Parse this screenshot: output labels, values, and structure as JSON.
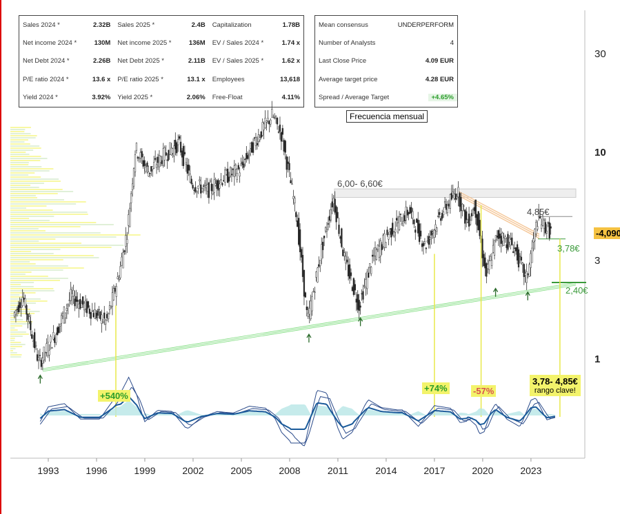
{
  "fundamentals": [
    [
      [
        "Sales 2024 *",
        "2.32B"
      ],
      [
        "Sales 2025 *",
        "2.4B"
      ],
      [
        "Capitalization",
        "1.78B"
      ]
    ],
    [
      [
        "Net income 2024 *",
        "130M"
      ],
      [
        "Net income 2025 *",
        "136M"
      ],
      [
        "EV / Sales 2024 *",
        "1.74 x"
      ]
    ],
    [
      [
        "Net Debt 2024 *",
        "2.26B"
      ],
      [
        "Net Debt 2025 *",
        "2.11B"
      ],
      [
        "EV / Sales 2025 *",
        "1.62 x"
      ]
    ],
    [
      [
        "P/E ratio 2024 *",
        "13.6 x"
      ],
      [
        "P/E ratio 2025 *",
        "13.1 x"
      ],
      [
        "Employees",
        "13,618"
      ]
    ],
    [
      [
        "Yield 2024 *",
        "3.92%"
      ],
      [
        "Yield 2025 *",
        "2.06%"
      ],
      [
        "Free-Float",
        "4.11%"
      ]
    ]
  ],
  "consensus": [
    [
      "Mean consensus",
      "UNDERPERFORM"
    ],
    [
      "Number of Analysts",
      "4"
    ],
    [
      "Last Close Price",
      "4.09 EUR"
    ],
    [
      "Average target price",
      "4.28 EUR"
    ],
    [
      "Spread / Average Target",
      "+4.65%"
    ]
  ],
  "colors": {
    "positive": "#2a9d2a",
    "negative": "#d9534f",
    "annot_yellow": "#f3f36b",
    "support": "#7ddc7d",
    "price_tag": "#f5c242"
  },
  "chart_data": {
    "type": "candlestick",
    "title": "Frecuencia mensual",
    "yscale": "log",
    "ylim": [
      0.8,
      40
    ],
    "yticks": [
      "1",
      "3",
      "10",
      "30"
    ],
    "xticks": [
      "1993",
      "1996",
      "1999",
      "2002",
      "2005",
      "2008",
      "2011",
      "2014",
      "2017",
      "2020",
      "2023"
    ],
    "xlim": [
      1990.8,
      2026.3
    ],
    "last_price_label": "-4,090",
    "price_path": [
      [
        1990.9,
        1.6
      ],
      [
        1991.5,
        2.0
      ],
      [
        1992.5,
        0.95
      ],
      [
        1993.5,
        1.3
      ],
      [
        1994.5,
        2.0
      ],
      [
        1995.3,
        1.8
      ],
      [
        1996.7,
        1.5
      ],
      [
        1997.5,
        2.6
      ],
      [
        1998.0,
        4.2
      ],
      [
        1998.5,
        10.4
      ],
      [
        1999.3,
        8
      ],
      [
        2000.2,
        9.5
      ],
      [
        2001.2,
        11
      ],
      [
        2002.0,
        7
      ],
      [
        2003.0,
        6.5
      ],
      [
        2004.0,
        7.5
      ],
      [
        2005.0,
        8.2
      ],
      [
        2006.0,
        11.5
      ],
      [
        2007.0,
        15
      ],
      [
        2007.6,
        12
      ],
      [
        2008.5,
        5
      ],
      [
        2009.2,
        1.5
      ],
      [
        2010.0,
        3.2
      ],
      [
        2010.8,
        6
      ],
      [
        2011.5,
        3
      ],
      [
        2012.4,
        1.8
      ],
      [
        2013.2,
        3
      ],
      [
        2014.2,
        4
      ],
      [
        2015.5,
        5.2
      ],
      [
        2016.5,
        3.5
      ],
      [
        2017.5,
        5
      ],
      [
        2018.5,
        6.5
      ],
      [
        2019.1,
        4.5
      ],
      [
        2019.6,
        5.5
      ],
      [
        2020.3,
        2.5
      ],
      [
        2021.0,
        4
      ],
      [
        2022.0,
        3.5
      ],
      [
        2022.8,
        2.4
      ],
      [
        2023.5,
        4.8
      ],
      [
        2024.3,
        4.09
      ]
    ],
    "annotations": {
      "resistance": "6,00- 6,60€",
      "high": "4,85€",
      "mid_support": "3,78€",
      "support": "2,40€",
      "gain1": "+540%",
      "gain2": "+74%",
      "loss": "-57%",
      "range": "3,78- 4,85€",
      "range_note": "rango clave!"
    }
  }
}
